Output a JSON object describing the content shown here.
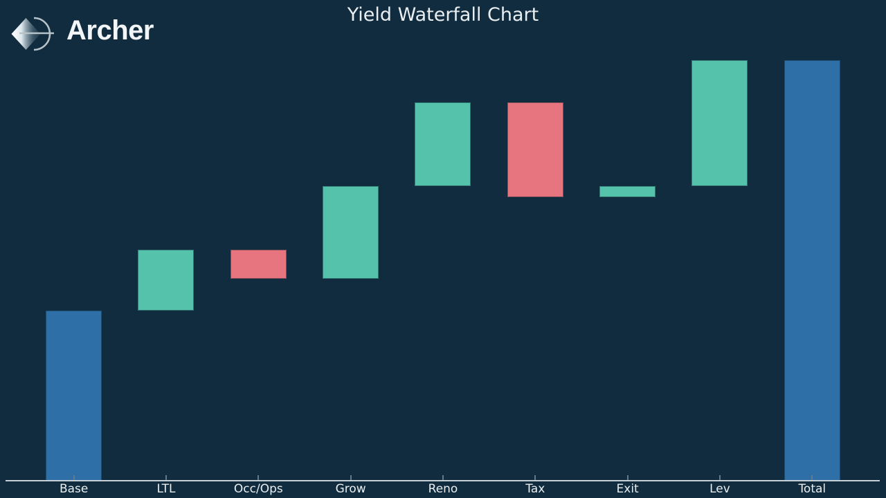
{
  "brand": {
    "name": "Archer",
    "logo_icon": "archer-bow-and-arrow"
  },
  "header": {
    "title": "Yield Waterfall Chart"
  },
  "chart_data": {
    "type": "bar",
    "subtype": "waterfall",
    "title": "Yield Waterfall Chart",
    "xlabel": "",
    "ylabel": "",
    "grid": false,
    "legend": null,
    "y_axis_visible": false,
    "ylim": [
      0,
      10.4
    ],
    "categories": [
      "Base",
      "LTL",
      "Occ/Ops",
      "Grow",
      "Reno",
      "Tax",
      "Exit",
      "Lev",
      "Total"
    ],
    "steps": [
      {
        "label": "Base",
        "kind": "base",
        "value": 4.05
      },
      {
        "label": "LTL",
        "kind": "increase",
        "value": 1.45
      },
      {
        "label": "Occ/Ops",
        "kind": "decrease",
        "value": -0.7
      },
      {
        "label": "Grow",
        "kind": "increase",
        "value": 2.2
      },
      {
        "label": "Reno",
        "kind": "increase",
        "value": 2.0
      },
      {
        "label": "Tax",
        "kind": "decrease",
        "value": -2.25
      },
      {
        "label": "Exit",
        "kind": "increase",
        "value": 0.25
      },
      {
        "label": "Lev",
        "kind": "increase",
        "value": 3.0
      },
      {
        "label": "Total",
        "kind": "total",
        "value": 10.0
      }
    ],
    "running_totals": [
      4.05,
      5.5,
      4.8,
      7.0,
      9.0,
      6.75,
      7.0,
      10.0,
      10.0
    ],
    "colors": {
      "base_total": "#2e6fa8",
      "increase": "#55c2ac",
      "decrease": "#e7757f",
      "background": "#112c3e",
      "axis_line": "#c7d0d6",
      "tick": "#647a88",
      "label_text": "#e9eef1"
    }
  }
}
